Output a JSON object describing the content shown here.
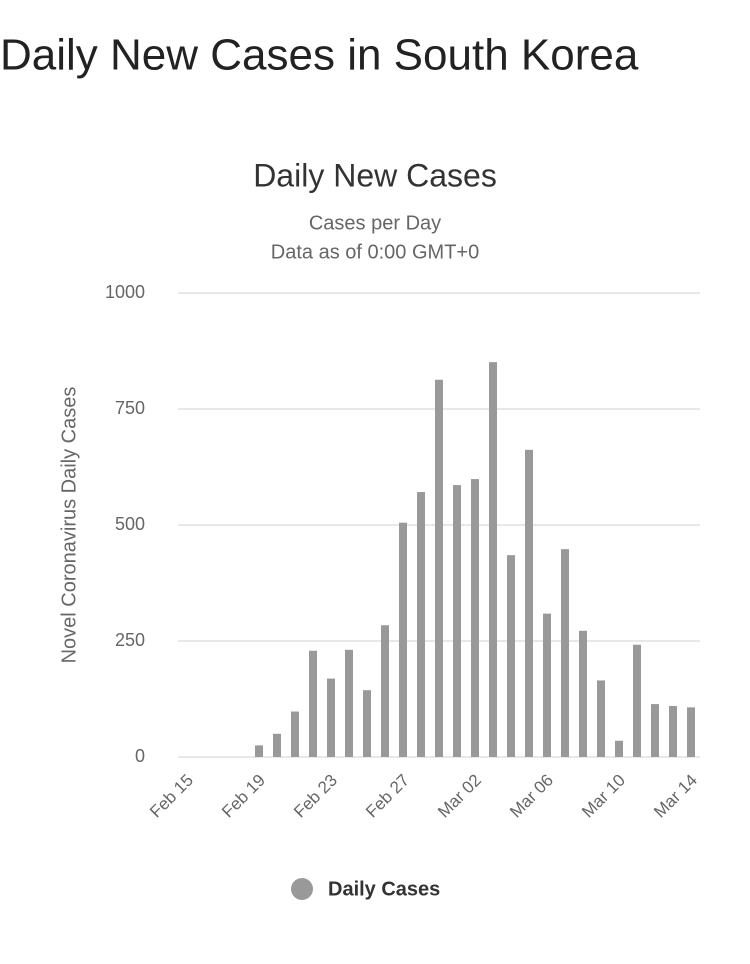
{
  "page_title": "Daily New Cases in South Korea",
  "chart_data": {
    "type": "bar",
    "title": "Daily New Cases",
    "subtitle": [
      "Cases per Day",
      "Data as of 0:00 GMT+0"
    ],
    "y_label": "Novel Coronavirus Daily Cases",
    "categories": [
      "Feb 15",
      null,
      null,
      null,
      "Feb 19",
      null,
      null,
      null,
      "Feb 23",
      null,
      null,
      null,
      "Feb 27",
      null,
      null,
      null,
      "Mar 02",
      null,
      null,
      null,
      "Mar 06",
      null,
      null,
      null,
      "Mar 10",
      null,
      null,
      null,
      "Mar 14"
    ],
    "series": [
      {
        "name": "Daily Cases",
        "color": "#999999",
        "values": [
          0,
          0,
          0,
          0,
          25,
          50,
          98,
          229,
          169,
          231,
          144,
          284,
          505,
          571,
          813,
          586,
          599,
          851,
          435,
          662,
          309,
          448,
          272,
          165,
          35,
          242,
          114,
          110,
          107
        ]
      }
    ],
    "ylim": [
      0,
      1000
    ],
    "yticks": [
      0,
      250,
      500,
      750,
      1000
    ],
    "grid": true,
    "legend": "bottom"
  }
}
